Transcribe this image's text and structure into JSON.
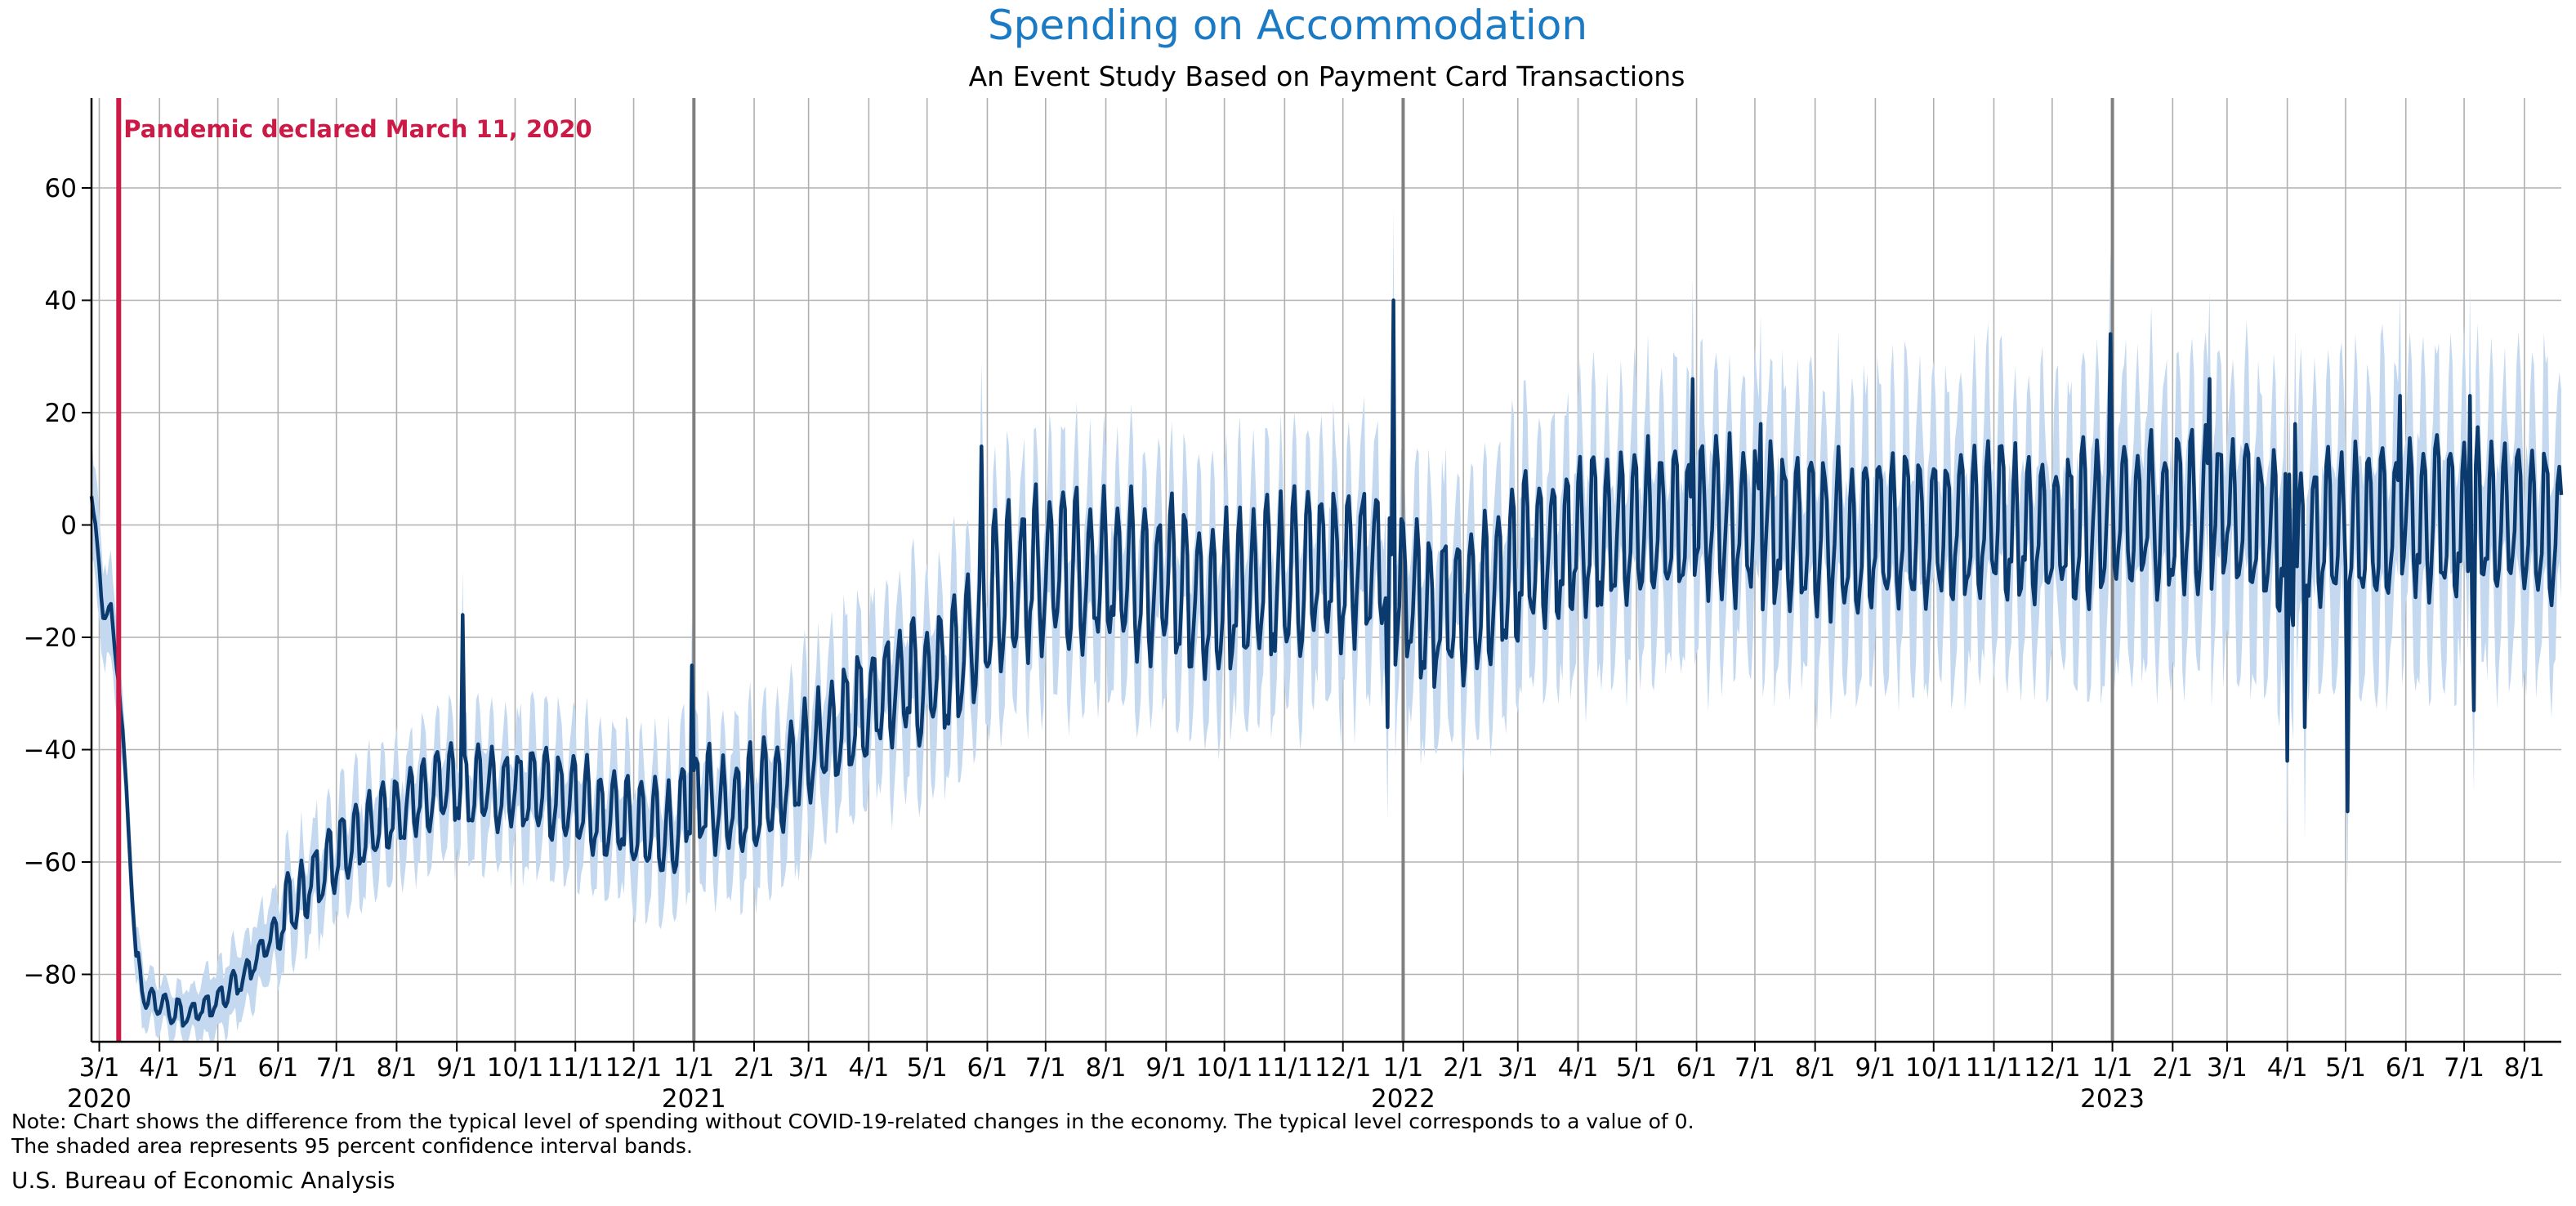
{
  "chart_data": {
    "type": "line",
    "title": "Spending on Accommodation",
    "subtitle": "An Event Study Based on Payment Card Transactions",
    "xlabel": "",
    "ylabel": "",
    "x_range": [
      "2020-02-26",
      "2023-08-20"
    ],
    "ylim": [
      -92,
      76
    ],
    "yticks": [
      -80,
      -60,
      -40,
      -20,
      0,
      20,
      40,
      60
    ],
    "grid": true,
    "legend": "none",
    "month_ticks": [
      {
        "date": "2020-03-01",
        "label": "3/1"
      },
      {
        "date": "2020-04-01",
        "label": "4/1"
      },
      {
        "date": "2020-05-01",
        "label": "5/1"
      },
      {
        "date": "2020-06-01",
        "label": "6/1"
      },
      {
        "date": "2020-07-01",
        "label": "7/1"
      },
      {
        "date": "2020-08-01",
        "label": "8/1"
      },
      {
        "date": "2020-09-01",
        "label": "9/1"
      },
      {
        "date": "2020-10-01",
        "label": "10/1"
      },
      {
        "date": "2020-11-01",
        "label": "11/1"
      },
      {
        "date": "2020-12-01",
        "label": "12/1"
      },
      {
        "date": "2021-01-01",
        "label": "1/1"
      },
      {
        "date": "2021-02-01",
        "label": "2/1"
      },
      {
        "date": "2021-03-01",
        "label": "3/1"
      },
      {
        "date": "2021-04-01",
        "label": "4/1"
      },
      {
        "date": "2021-05-01",
        "label": "5/1"
      },
      {
        "date": "2021-06-01",
        "label": "6/1"
      },
      {
        "date": "2021-07-01",
        "label": "7/1"
      },
      {
        "date": "2021-08-01",
        "label": "8/1"
      },
      {
        "date": "2021-09-01",
        "label": "9/1"
      },
      {
        "date": "2021-10-01",
        "label": "10/1"
      },
      {
        "date": "2021-11-01",
        "label": "11/1"
      },
      {
        "date": "2021-12-01",
        "label": "12/1"
      },
      {
        "date": "2022-01-01",
        "label": "1/1"
      },
      {
        "date": "2022-02-01",
        "label": "2/1"
      },
      {
        "date": "2022-03-01",
        "label": "3/1"
      },
      {
        "date": "2022-04-01",
        "label": "4/1"
      },
      {
        "date": "2022-05-01",
        "label": "5/1"
      },
      {
        "date": "2022-06-01",
        "label": "6/1"
      },
      {
        "date": "2022-07-01",
        "label": "7/1"
      },
      {
        "date": "2022-08-01",
        "label": "8/1"
      },
      {
        "date": "2022-09-01",
        "label": "9/1"
      },
      {
        "date": "2022-10-01",
        "label": "10/1"
      },
      {
        "date": "2022-11-01",
        "label": "11/1"
      },
      {
        "date": "2022-12-01",
        "label": "12/1"
      },
      {
        "date": "2023-01-01",
        "label": "1/1"
      },
      {
        "date": "2023-02-01",
        "label": "2/1"
      },
      {
        "date": "2023-03-01",
        "label": "3/1"
      },
      {
        "date": "2023-04-01",
        "label": "4/1"
      },
      {
        "date": "2023-05-01",
        "label": "5/1"
      },
      {
        "date": "2023-06-01",
        "label": "6/1"
      },
      {
        "date": "2023-07-01",
        "label": "7/1"
      },
      {
        "date": "2023-08-01",
        "label": "8/1"
      }
    ],
    "year_ticks": [
      {
        "date": "2020-03-01",
        "label": "2020"
      },
      {
        "date": "2021-01-01",
        "label": "2021"
      },
      {
        "date": "2022-01-01",
        "label": "2022"
      },
      {
        "date": "2023-01-01",
        "label": "2023"
      }
    ],
    "year_lines": [
      "2021-01-01",
      "2022-01-01",
      "2023-01-01"
    ],
    "event": {
      "date": "2020-03-11",
      "label": "Pandemic declared March 11, 2020"
    },
    "series": [
      {
        "role": "estimate",
        "style": "line",
        "points": [
          [
            "2020-02-26",
            6
          ],
          [
            "2020-03-03",
            -16
          ],
          [
            "2020-03-07",
            -16
          ],
          [
            "2020-03-11",
            -28
          ],
          [
            "2020-03-15",
            -48
          ],
          [
            "2020-03-20",
            -78
          ],
          [
            "2020-03-25",
            -85
          ],
          [
            "2020-04-01",
            -86
          ],
          [
            "2020-04-15",
            -88
          ],
          [
            "2020-05-01",
            -85
          ],
          [
            "2020-05-15",
            -81
          ],
          [
            "2020-06-01",
            -72
          ],
          [
            "2020-06-15",
            -66
          ],
          [
            "2020-07-01",
            -60
          ],
          [
            "2020-07-15",
            -57
          ],
          [
            "2020-08-01",
            -53
          ],
          [
            "2020-08-15",
            -50
          ],
          [
            "2020-09-01",
            -48
          ],
          [
            "2020-10-01",
            -49
          ],
          [
            "2020-11-01",
            -51
          ],
          [
            "2020-12-01",
            -56
          ],
          [
            "2020-12-20",
            -57
          ],
          [
            "2021-01-01",
            -50
          ],
          [
            "2021-01-15",
            -53
          ],
          [
            "2021-02-01",
            -52
          ],
          [
            "2021-02-15",
            -48
          ],
          [
            "2021-03-01",
            -44
          ],
          [
            "2021-03-15",
            -38
          ],
          [
            "2021-04-01",
            -34
          ],
          [
            "2021-04-15",
            -31
          ],
          [
            "2021-05-01",
            -30
          ],
          [
            "2021-05-15",
            -28
          ],
          [
            "2021-06-01",
            -18
          ],
          [
            "2021-06-15",
            -14
          ],
          [
            "2021-07-01",
            -12
          ],
          [
            "2021-07-15",
            -11
          ],
          [
            "2021-08-01",
            -12
          ],
          [
            "2021-08-15",
            -13
          ],
          [
            "2021-09-01",
            -14
          ],
          [
            "2021-09-15",
            -16
          ],
          [
            "2021-10-01",
            -17
          ],
          [
            "2021-10-15",
            -15
          ],
          [
            "2021-11-01",
            -13
          ],
          [
            "2021-11-15",
            -12
          ],
          [
            "2021-12-01",
            -11
          ],
          [
            "2021-12-15",
            -9
          ],
          [
            "2022-01-01",
            -15
          ],
          [
            "2022-01-15",
            -20
          ],
          [
            "2022-02-01",
            -17
          ],
          [
            "2022-02-15",
            -14
          ],
          [
            "2022-03-01",
            -10
          ],
          [
            "2022-03-15",
            -8
          ],
          [
            "2022-04-01",
            -6
          ],
          [
            "2022-05-01",
            -4
          ],
          [
            "2022-06-01",
            -3
          ],
          [
            "2022-07-01",
            -4
          ],
          [
            "2022-08-01",
            -5
          ],
          [
            "2022-09-01",
            -6
          ],
          [
            "2022-10-01",
            -4
          ],
          [
            "2022-11-01",
            -3
          ],
          [
            "2022-12-01",
            -5
          ],
          [
            "2023-01-01",
            -2
          ],
          [
            "2023-02-01",
            -2
          ],
          [
            "2023-03-01",
            0
          ],
          [
            "2023-04-01",
            -6
          ],
          [
            "2023-05-01",
            -5
          ],
          [
            "2023-06-01",
            -3
          ],
          [
            "2023-07-01",
            -3
          ],
          [
            "2023-08-01",
            -2
          ],
          [
            "2023-08-20",
            -3
          ]
        ]
      },
      {
        "role": "confidence band",
        "style": "area",
        "color": "#c4d9f0",
        "half_width": [
          [
            "2020-02-26",
            10
          ],
          [
            "2020-04-01",
            4
          ],
          [
            "2020-06-01",
            7
          ],
          [
            "2020-09-01",
            9
          ],
          [
            "2021-01-01",
            10
          ],
          [
            "2021-06-01",
            13
          ],
          [
            "2022-01-01",
            14
          ],
          [
            "2022-06-01",
            16
          ],
          [
            "2023-01-01",
            18
          ],
          [
            "2023-08-20",
            18
          ]
        ]
      }
    ],
    "spikes": [
      [
        "2020-09-04",
        -16
      ],
      [
        "2020-12-31",
        -25
      ],
      [
        "2021-05-29",
        14
      ],
      [
        "2021-12-24",
        -36
      ],
      [
        "2021-12-27",
        40
      ],
      [
        "2022-05-30",
        26
      ],
      [
        "2022-07-04",
        18
      ],
      [
        "2022-12-31",
        34
      ],
      [
        "2023-02-20",
        26
      ],
      [
        "2023-04-05",
        18
      ],
      [
        "2023-04-01",
        -42
      ],
      [
        "2023-04-10",
        -36
      ],
      [
        "2023-05-02",
        -51
      ],
      [
        "2023-05-29",
        23
      ],
      [
        "2023-07-04",
        23
      ],
      [
        "2023-07-06",
        -33
      ]
    ]
  },
  "colors": {
    "title": "#1a7ac4",
    "line": "#0b3a6e",
    "band": "#c4d9f0",
    "event": "#cc1a47",
    "grid": "#b0b0b0",
    "year_line": "#808080"
  },
  "footer": {
    "note_line1": "Note: Chart shows the difference from the typical level of spending without COVID-19-related changes in the economy. The typical level corresponds to a value of 0.",
    "note_line2": "The shaded area represents 95 percent confidence interval bands.",
    "source": "U.S. Bureau of Economic Analysis"
  }
}
